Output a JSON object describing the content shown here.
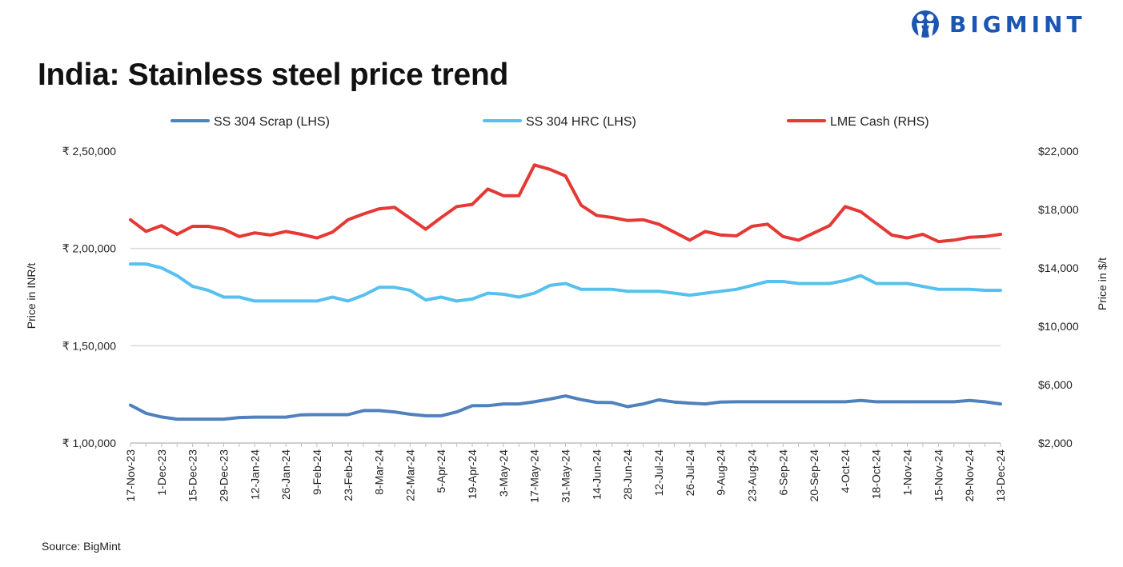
{
  "header": {
    "title": "India: Stainless steel price trend",
    "logo_text": "BIGMINT",
    "logo_icon": "bigmint-people-icon",
    "brand_color": "#1b56b3"
  },
  "footer": {
    "source": "Source: BigMint"
  },
  "chart_data": {
    "type": "line",
    "title": "India: Stainless steel price trend",
    "ylabel": "Price in INR/t",
    "ylabel_right": "Price in $/t",
    "ylim": [
      100000,
      250000
    ],
    "ylim_right": [
      2000,
      22000
    ],
    "yticks": [
      "₹ 1,00,000",
      "₹ 1,50,000",
      "₹ 2,00,000",
      "₹ 2,50,000"
    ],
    "yticks_right": [
      "$2,000",
      "$6,000",
      "$10,000",
      "$14,000",
      "$18,000",
      "$22,000"
    ],
    "legend_position": "top",
    "grid": "horizontal",
    "x_tick_labels": [
      "17-Nov-23",
      "1-Dec-23",
      "15-Dec-23",
      "29-Dec-23",
      "12-Jan-24",
      "26-Jan-24",
      "9-Feb-24",
      "23-Feb-24",
      "8-Mar-24",
      "22-Mar-24",
      "5-Apr-24",
      "19-Apr-24",
      "3-May-24",
      "17-May-24",
      "31-May-24",
      "14-Jun-24",
      "28-Jun-24",
      "12-Jul-24",
      "26-Jul-24",
      "9-Aug-24",
      "23-Aug-24",
      "6-Sep-24",
      "20-Sep-24",
      "4-Oct-24",
      "18-Oct-24",
      "1-Nov-24",
      "15-Nov-24",
      "29-Nov-24",
      "13-Dec-24"
    ],
    "x_start": "2023-11-17",
    "x_frequency": "weekly",
    "series": [
      {
        "name": "SS 304 Scrap (LHS)",
        "axis": "left",
        "color": "#4f81bd",
        "values": [
          119500,
          115300,
          113400,
          112300,
          112300,
          112300,
          112300,
          113100,
          113300,
          113300,
          113300,
          114500,
          114600,
          114600,
          114600,
          116700,
          116700,
          116000,
          114800,
          114000,
          114000,
          116000,
          119200,
          119200,
          120100,
          120100,
          121200,
          122600,
          124200,
          122300,
          120900,
          120800,
          118700,
          120100,
          122200,
          121100,
          120500,
          120100,
          121100,
          121200,
          121200,
          121200,
          121200,
          121200,
          121200,
          121200,
          121200,
          121900,
          121200,
          121200,
          121200,
          121200,
          121200,
          121200,
          121900,
          121200,
          120100
        ]
      },
      {
        "name": "SS 304 HRC (LHS)",
        "axis": "left",
        "color": "#56c1ee",
        "values": [
          192000,
          192000,
          190000,
          186000,
          180500,
          178500,
          175000,
          175000,
          173000,
          173000,
          173000,
          173000,
          173000,
          175000,
          173000,
          176000,
          180000,
          180000,
          178500,
          173500,
          175000,
          173000,
          174000,
          177000,
          176500,
          175000,
          177000,
          181000,
          182000,
          179000,
          179000,
          179000,
          178000,
          178000,
          178000,
          177000,
          176000,
          177000,
          178000,
          179000,
          181000,
          183000,
          183000,
          182000,
          182000,
          182000,
          183500,
          186000,
          182000,
          182000,
          182000,
          180500,
          179000,
          179000,
          179000,
          178500,
          178500
        ]
      },
      {
        "name": "LME Cash (RHS)",
        "axis": "right",
        "color": "#e53935",
        "values": [
          17300,
          16500,
          16900,
          16300,
          16850,
          16850,
          16650,
          16150,
          16400,
          16250,
          16500,
          16300,
          16050,
          16450,
          17300,
          17700,
          18050,
          18150,
          17400,
          16650,
          17450,
          18200,
          18350,
          19400,
          18950,
          18950,
          21050,
          20750,
          20300,
          18300,
          17600,
          17450,
          17250,
          17300,
          17000,
          16450,
          15900,
          16500,
          16250,
          16200,
          16850,
          17000,
          16150,
          15900,
          16400,
          16900,
          18200,
          17850,
          17050,
          16250,
          16050,
          16300,
          15800,
          15900,
          16100,
          16150,
          16300
        ]
      }
    ]
  }
}
